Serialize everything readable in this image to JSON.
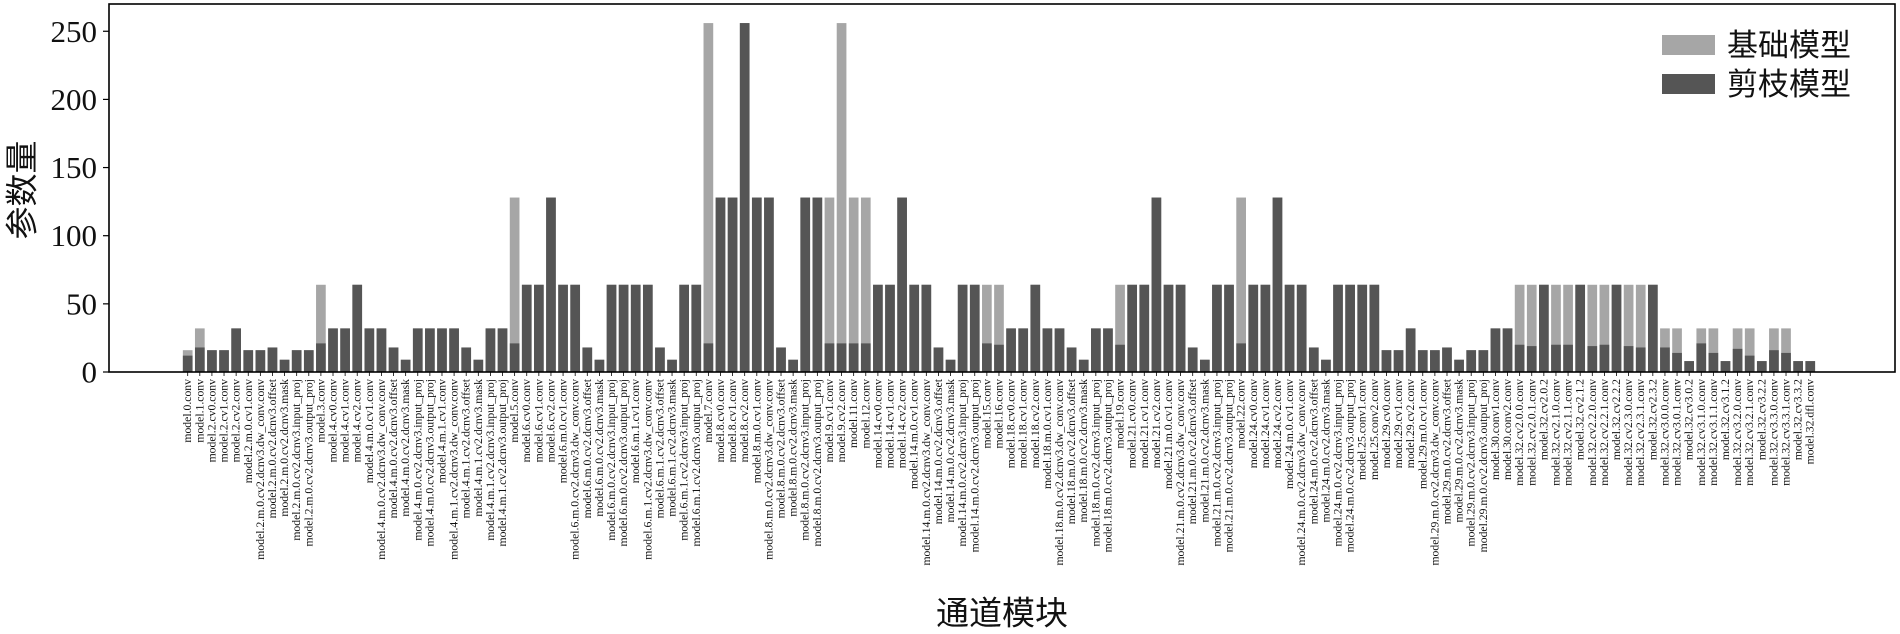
{
  "chart_data": {
    "type": "bar",
    "xlabel": "通道模块",
    "ylabel": "参数量",
    "ylim": [
      0,
      270
    ],
    "yticks": [
      0,
      50,
      100,
      150,
      200,
      250
    ],
    "grid": false,
    "legend_position": "top-right",
    "categories": [
      "model.0.conv",
      "model.1.conv",
      "model.2.cv0.conv",
      "model.2.cv1.conv",
      "model.2.cv2.conv",
      "model.2.m.0.cv1.conv",
      "model.2.m.0.cv2.dcnv3.dw_conv.conv",
      "model.2.m.0.cv2.dcnv3.offset",
      "model.2.m.0.cv2.dcnv3.mask",
      "model.2.m.0.cv2.dcnv3.input_proj",
      "model.2.m.0.cv2.dcnv3.output_proj",
      "model.3.conv",
      "model.4.cv0.conv",
      "model.4.cv1.conv",
      "model.4.cv2.conv",
      "model.4.m.0.cv1.conv",
      "model.4.m.0.cv2.dcnv3.dw_conv.conv",
      "model.4.m.0.cv2.dcnv3.offset",
      "model.4.m.0.cv2.dcnv3.mask",
      "model.4.m.0.cv2.dcnv3.input_proj",
      "model.4.m.0.cv2.dcnv3.output_proj",
      "model.4.m.1.cv1.conv",
      "model.4.m.1.cv2.dcnv3.dw_conv.conv",
      "model.4.m.1.cv2.dcnv3.offset",
      "model.4.m.1.cv2.dcnv3.mask",
      "model.4.m.1.cv2.dcnv3.input_proj",
      "model.4.m.1.cv2.dcnv3.output_proj",
      "model.5.conv",
      "model.6.cv0.conv",
      "model.6.cv1.conv",
      "model.6.cv2.conv",
      "model.6.m.0.cv1.conv",
      "model.6.m.0.cv2.dcnv3.dw_conv.conv",
      "model.6.m.0.cv2.dcnv3.offset",
      "model.6.m.0.cv2.dcnv3.mask",
      "model.6.m.0.cv2.dcnv3.input_proj",
      "model.6.m.0.cv2.dcnv3.output_proj",
      "model.6.m.1.cv1.conv",
      "model.6.m.1.cv2.dcnv3.dw_conv.conv",
      "model.6.m.1.cv2.dcnv3.offset",
      "model.6.m.1.cv2.dcnv3.mask",
      "model.6.m.1.cv2.dcnv3.input_proj",
      "model.6.m.1.cv2.dcnv3.output_proj",
      "model.7.conv",
      "model.8.cv0.conv",
      "model.8.cv1.conv",
      "model.8.cv2.conv",
      "model.8.m.0.cv1.conv",
      "model.8.m.0.cv2.dcnv3.dw_conv.conv",
      "model.8.m.0.cv2.dcnv3.offset",
      "model.8.m.0.cv2.dcnv3.mask",
      "model.8.m.0.cv2.dcnv3.input_proj",
      "model.8.m.0.cv2.dcnv3.output_proj",
      "model.9.cv1.conv",
      "model.9.cv2.conv",
      "model.11.conv",
      "model.12.conv",
      "model.14.cv0.conv",
      "model.14.cv1.conv",
      "model.14.cv2.conv",
      "model.14.m.0.cv1.conv",
      "model.14.m.0.cv2.dcnv3.dw_conv.conv",
      "model.14.m.0.cv2.dcnv3.offset",
      "model.14.m.0.cv2.dcnv3.mask",
      "model.14.m.0.cv2.dcnv3.input_proj",
      "model.14.m.0.cv2.dcnv3.output_proj",
      "model.15.conv",
      "model.16.conv",
      "model.18.cv0.conv",
      "model.18.cv1.conv",
      "model.18.cv2.conv",
      "model.18.m.0.cv1.conv",
      "model.18.m.0.cv2.dcnv3.dw_conv.conv",
      "model.18.m.0.cv2.dcnv3.offset",
      "model.18.m.0.cv2.dcnv3.mask",
      "model.18.m.0.cv2.dcnv3.input_proj",
      "model.18.m.0.cv2.dcnv3.output_proj",
      "model.19.conv",
      "model.21.cv0.conv",
      "model.21.cv1.conv",
      "model.21.cv2.conv",
      "model.21.m.0.cv1.conv",
      "model.21.m.0.cv2.dcnv3.dw_conv.conv",
      "model.21.m.0.cv2.dcnv3.offset",
      "model.21.m.0.cv2.dcnv3.mask",
      "model.21.m.0.cv2.dcnv3.input_proj",
      "model.21.m.0.cv2.dcnv3.output_proj",
      "model.22.conv",
      "model.24.cv0.conv",
      "model.24.cv1.conv",
      "model.24.cv2.conv",
      "model.24.m.0.cv1.conv",
      "model.24.m.0.cv2.dcnv3.dw_conv.conv",
      "model.24.m.0.cv2.dcnv3.offset",
      "model.24.m.0.cv2.dcnv3.mask",
      "model.24.m.0.cv2.dcnv3.input_proj",
      "model.24.m.0.cv2.dcnv3.output_proj",
      "model.25.conv1.conv",
      "model.25.conv2.conv",
      "model.29.cv0.conv",
      "model.29.cv1.conv",
      "model.29.cv2.conv",
      "model.29.m.0.cv1.conv",
      "model.29.m.0.cv2.dcnv3.dw_conv.conv",
      "model.29.m.0.cv2.dcnv3.offset",
      "model.29.m.0.cv2.dcnv3.mask",
      "model.29.m.0.cv2.dcnv3.input_proj",
      "model.29.m.0.cv2.dcnv3.output_proj",
      "model.30.conv1.conv",
      "model.30.conv2.conv",
      "model.32.cv2.0.0.conv",
      "model.32.cv2.0.1.conv",
      "model.32.cv2.0.2",
      "model.32.cv2.1.0.conv",
      "model.32.cv2.1.1.conv",
      "model.32.cv2.1.2",
      "model.32.cv2.2.0.conv",
      "model.32.cv2.2.1.conv",
      "model.32.cv2.2.2",
      "model.32.cv2.3.0.conv",
      "model.32.cv2.3.1.conv",
      "model.32.cv2.3.2",
      "model.32.cv3.0.0.conv",
      "model.32.cv3.0.1.conv",
      "model.32.cv3.0.2",
      "model.32.cv3.1.0.conv",
      "model.32.cv3.1.1.conv",
      "model.32.cv3.1.2",
      "model.32.cv3.2.0.conv",
      "model.32.cv3.2.1.conv",
      "model.32.cv3.2.2",
      "model.32.cv3.3.0.conv",
      "model.32.cv3.3.1.conv",
      "model.32.cv3.3.2",
      "model.32.dfl.conv"
    ],
    "series": [
      {
        "name": "基础模型",
        "color": "#a6a6a6",
        "values": [
          16,
          32,
          16,
          16,
          32,
          16,
          16,
          18,
          9,
          16,
          16,
          64,
          32,
          32,
          64,
          32,
          32,
          18,
          9,
          32,
          32,
          32,
          32,
          18,
          9,
          32,
          32,
          128,
          64,
          64,
          128,
          64,
          64,
          18,
          9,
          64,
          64,
          64,
          64,
          18,
          9,
          64,
          64,
          256,
          128,
          128,
          256,
          128,
          128,
          18,
          9,
          128,
          128,
          128,
          256,
          128,
          128,
          64,
          64,
          128,
          64,
          64,
          18,
          9,
          64,
          64,
          64,
          64,
          32,
          32,
          64,
          32,
          32,
          18,
          9,
          32,
          32,
          64,
          64,
          64,
          128,
          64,
          64,
          18,
          9,
          64,
          64,
          128,
          64,
          64,
          128,
          64,
          64,
          18,
          9,
          64,
          64,
          64,
          64,
          16,
          16,
          32,
          16,
          16,
          18,
          9,
          16,
          16,
          32,
          32,
          64,
          64,
          64,
          64,
          64,
          64,
          64,
          64,
          64,
          64,
          64,
          64,
          32,
          32,
          8,
          32,
          32,
          8,
          32,
          32,
          8,
          32,
          32,
          8,
          8
        ]
      },
      {
        "name": "剪枝模型",
        "color": "#555555",
        "values": [
          12,
          18,
          16,
          16,
          32,
          16,
          16,
          18,
          9,
          16,
          16,
          21,
          32,
          32,
          64,
          32,
          32,
          18,
          9,
          32,
          32,
          32,
          32,
          18,
          9,
          32,
          32,
          21,
          64,
          64,
          128,
          64,
          64,
          18,
          9,
          64,
          64,
          64,
          64,
          18,
          9,
          64,
          64,
          21,
          128,
          128,
          256,
          128,
          128,
          18,
          9,
          128,
          128,
          21,
          21,
          21,
          21,
          64,
          64,
          128,
          64,
          64,
          18,
          9,
          64,
          64,
          21,
          20,
          32,
          32,
          64,
          32,
          32,
          18,
          9,
          32,
          32,
          20,
          64,
          64,
          128,
          64,
          64,
          18,
          9,
          64,
          64,
          21,
          64,
          64,
          128,
          64,
          64,
          18,
          9,
          64,
          64,
          64,
          64,
          16,
          16,
          32,
          16,
          16,
          18,
          9,
          16,
          16,
          32,
          32,
          20,
          19,
          64,
          20,
          20,
          64,
          19,
          20,
          64,
          19,
          18,
          64,
          18,
          14,
          8,
          21,
          14,
          8,
          17,
          12,
          8,
          16,
          14,
          8,
          8
        ]
      }
    ]
  }
}
